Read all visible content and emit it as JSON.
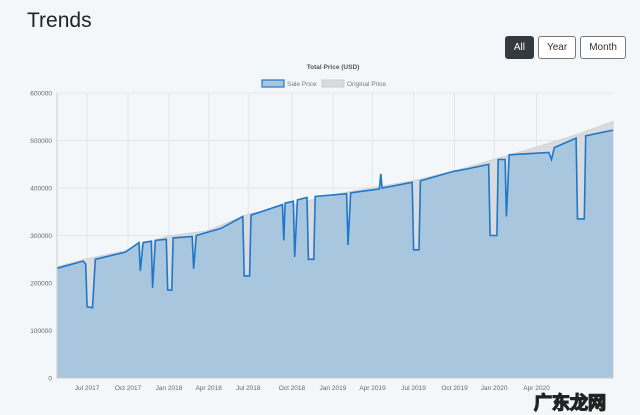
{
  "page": {
    "title": "Trends",
    "watermark": "广东龙网"
  },
  "range_buttons": [
    {
      "label": "All",
      "active": true
    },
    {
      "label": "Year",
      "active": false
    },
    {
      "label": "Month",
      "active": false
    }
  ],
  "chart_data": {
    "type": "area",
    "title": "Total Price (USD)",
    "legend": [
      "Sale Price",
      "Original Price"
    ],
    "legend_position": "top",
    "ylim": [
      0,
      600000
    ],
    "yticks": [
      0,
      100000,
      200000,
      300000,
      400000,
      500000,
      600000
    ],
    "xticks": [
      "Jul 2017",
      "Oct 2017",
      "Jan 2018",
      "Apr 2018",
      "Jul 2018",
      "Oct 2018",
      "Jan 2019",
      "Apr 2019",
      "Jul 2019",
      "Oct 2019",
      "Jan 2020",
      "Apr 2020"
    ],
    "xtick_months": [
      2.2,
      5.2,
      8.2,
      11.1,
      14,
      17.2,
      20.2,
      23.1,
      26.1,
      29.1,
      32,
      35.1
    ],
    "xlim_months": [
      0,
      40.7
    ],
    "x_unit": "months since May 2017",
    "colors": {
      "sale": "#1f77c9",
      "sale_fill": "#a9c6df",
      "original": "#d9dbde"
    },
    "series": [
      {
        "name": "Original Price",
        "points": [
          [
            0,
            234000
          ],
          [
            2,
            250000
          ],
          [
            5,
            268000
          ],
          [
            8,
            298000
          ],
          [
            11,
            310000
          ],
          [
            14,
            345000
          ],
          [
            17,
            362000
          ],
          [
            20,
            385000
          ],
          [
            23,
            400000
          ],
          [
            26,
            415000
          ],
          [
            29,
            435000
          ],
          [
            32,
            460000
          ],
          [
            35,
            485000
          ],
          [
            38,
            512000
          ],
          [
            40.7,
            540000
          ]
        ]
      },
      {
        "name": "Sale Price",
        "points": [
          [
            0,
            231000
          ],
          [
            1.9,
            246000
          ],
          [
            2.1,
            240000
          ],
          [
            2.2,
            150000
          ],
          [
            2.6,
            148000
          ],
          [
            2.8,
            250000
          ],
          [
            5,
            265000
          ],
          [
            6,
            285000
          ],
          [
            6.1,
            225000
          ],
          [
            6.3,
            285000
          ],
          [
            6.9,
            288000
          ],
          [
            7,
            190000
          ],
          [
            7.2,
            290000
          ],
          [
            8,
            292000
          ],
          [
            8.1,
            185000
          ],
          [
            8.4,
            185000
          ],
          [
            8.5,
            295000
          ],
          [
            9.9,
            298000
          ],
          [
            10,
            230000
          ],
          [
            10.2,
            300000
          ],
          [
            12,
            315000
          ],
          [
            13.6,
            340000
          ],
          [
            13.7,
            215000
          ],
          [
            14.1,
            215000
          ],
          [
            14.2,
            343000
          ],
          [
            16.5,
            365000
          ],
          [
            16.6,
            290000
          ],
          [
            16.7,
            368000
          ],
          [
            17.3,
            372000
          ],
          [
            17.4,
            255000
          ],
          [
            17.6,
            375000
          ],
          [
            18.3,
            380000
          ],
          [
            18.4,
            250000
          ],
          [
            18.8,
            250000
          ],
          [
            18.9,
            382000
          ],
          [
            21.2,
            388000
          ],
          [
            21.3,
            280000
          ],
          [
            21.5,
            390000
          ],
          [
            23.6,
            398000
          ],
          [
            23.7,
            430000
          ],
          [
            23.8,
            400000
          ],
          [
            26,
            412000
          ],
          [
            26.1,
            270000
          ],
          [
            26.5,
            270000
          ],
          [
            26.6,
            415000
          ],
          [
            29,
            435000
          ],
          [
            30,
            440000
          ],
          [
            31.6,
            450000
          ],
          [
            31.7,
            300000
          ],
          [
            32.2,
            300000
          ],
          [
            32.3,
            460000
          ],
          [
            32.8,
            460000
          ],
          [
            32.9,
            340000
          ],
          [
            33.1,
            470000
          ],
          [
            36,
            475000
          ],
          [
            36.2,
            460000
          ],
          [
            36.4,
            485000
          ],
          [
            38,
            505000
          ],
          [
            38.1,
            335000
          ],
          [
            38.6,
            335000
          ],
          [
            38.7,
            510000
          ],
          [
            40.7,
            522000
          ]
        ]
      }
    ]
  }
}
